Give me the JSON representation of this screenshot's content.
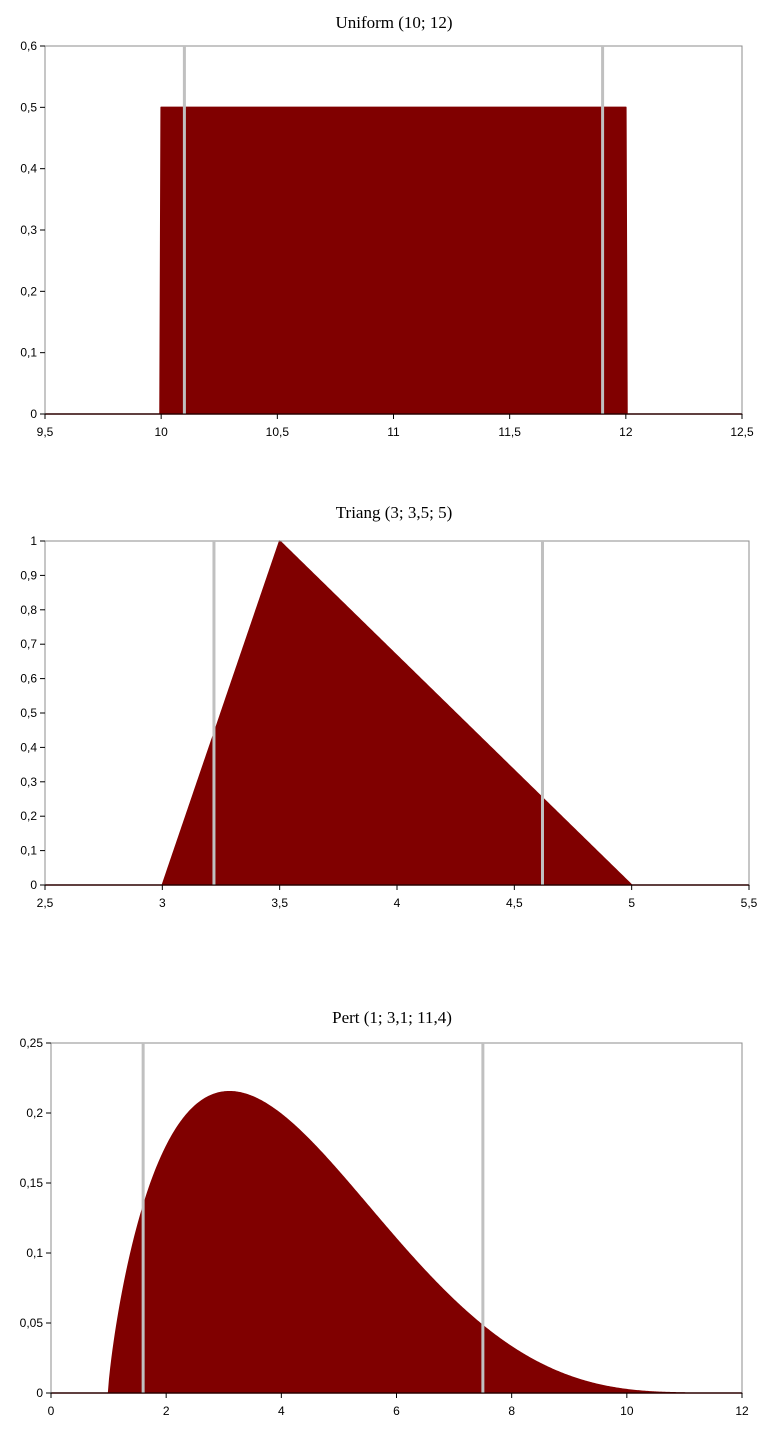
{
  "colors": {
    "fill": "#800000",
    "marker": "#c0c0c0",
    "frame": "#8c8c8c"
  },
  "chart_data": [
    {
      "type": "area",
      "distribution": "uniform",
      "params": [
        10,
        12
      ],
      "title": "Uniform (10; 12)",
      "xlim": [
        9.5,
        12.5
      ],
      "ylim": [
        0,
        0.6
      ],
      "xticks": [
        9.5,
        10,
        10.5,
        11,
        11.5,
        12,
        12.5
      ],
      "xtick_labels": [
        "9,5",
        "10",
        "10,5",
        "11",
        "11,5",
        "12",
        "12,5"
      ],
      "yticks": [
        0,
        0.1,
        0.2,
        0.3,
        0.4,
        0.5,
        0.6
      ],
      "ytick_labels": [
        "0",
        "0,1",
        "0,2",
        "0,3",
        "0,4",
        "0,5",
        "0,6"
      ],
      "markers": [
        10.1,
        11.9
      ],
      "grid": false
    },
    {
      "type": "area",
      "distribution": "triang",
      "params": [
        3,
        3.5,
        5
      ],
      "title": "Triang (3; 3,5; 5)",
      "xlim": [
        2.5,
        5.5
      ],
      "ylim": [
        0,
        1
      ],
      "xticks": [
        2.5,
        3,
        3.5,
        4,
        4.5,
        5,
        5.5
      ],
      "xtick_labels": [
        "2,5",
        "3",
        "3,5",
        "4",
        "4,5",
        "5",
        "5,5"
      ],
      "yticks": [
        0,
        0.1,
        0.2,
        0.3,
        0.4,
        0.5,
        0.6,
        0.7,
        0.8,
        0.9,
        1
      ],
      "ytick_labels": [
        "0",
        "0,1",
        "0,2",
        "0,3",
        "0,4",
        "0,5",
        "0,6",
        "0,7",
        "0,8",
        "0,9",
        "1"
      ],
      "markers": [
        3.22,
        4.62
      ],
      "grid": false
    },
    {
      "type": "area",
      "distribution": "pert",
      "params": [
        1,
        3.1,
        11.4
      ],
      "title": "Pert (1; 3,1; 11,4)",
      "xlim": [
        0,
        12
      ],
      "ylim": [
        0,
        0.25
      ],
      "xticks": [
        0,
        2,
        4,
        6,
        8,
        10,
        12
      ],
      "xtick_labels": [
        "0",
        "2",
        "4",
        "6",
        "8",
        "10",
        "12"
      ],
      "yticks": [
        0,
        0.05,
        0.1,
        0.15,
        0.2,
        0.25
      ],
      "ytick_labels": [
        "0",
        "0,05",
        "0,1",
        "0,15",
        "0,2",
        "0,25"
      ],
      "markers": [
        1.6,
        7.5
      ],
      "grid": false
    }
  ]
}
